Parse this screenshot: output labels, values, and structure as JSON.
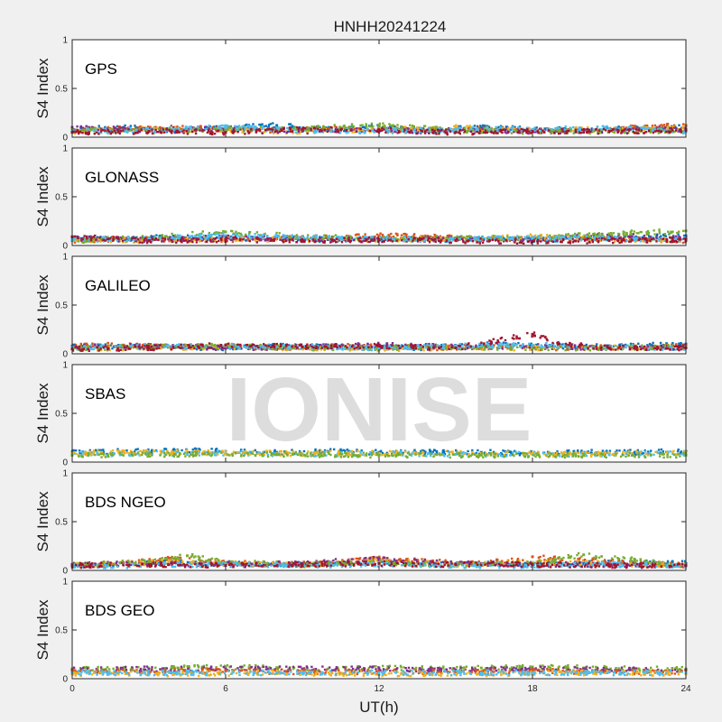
{
  "figure": {
    "title": "HNHH20241224",
    "watermark": "IONISE"
  },
  "chart_data": {
    "type": "scatter",
    "xlabel": "UT(h)",
    "xlim": [
      0,
      24
    ],
    "xticks": [
      0,
      6,
      12,
      18,
      24
    ],
    "ylabel": "S4 Index",
    "ylim": [
      0,
      1
    ],
    "yticks": [
      0,
      0.5,
      1
    ],
    "ytick_labels": [
      "0",
      "0.5",
      "1"
    ],
    "grid": false,
    "colors": [
      "#0072bd",
      "#d95319",
      "#edb120",
      "#7e2f8e",
      "#77ac30",
      "#4dbeee",
      "#a2142f"
    ],
    "panels": [
      {
        "label": "GPS",
        "series": [
          {
            "color": "#0072bd",
            "x": [
              0,
              2,
              4,
              6,
              8,
              10,
              12,
              14,
              16,
              18,
              20,
              22,
              24
            ],
            "y": [
              0.08,
              0.1,
              0.07,
              0.1,
              0.12,
              0.08,
              0.1,
              0.07,
              0.1,
              0.08,
              0.07,
              0.09,
              0.1
            ]
          },
          {
            "color": "#d95319",
            "x": [
              0,
              2,
              4,
              6,
              8,
              10,
              12,
              14,
              16,
              18,
              20,
              22,
              24
            ],
            "y": [
              0.07,
              0.09,
              0.1,
              0.08,
              0.07,
              0.09,
              0.08,
              0.07,
              0.08,
              0.07,
              0.06,
              0.1,
              0.12
            ]
          },
          {
            "color": "#edb120",
            "x": [
              0,
              3,
              6,
              9,
              12,
              15,
              18,
              21,
              24
            ],
            "y": [
              0.06,
              0.08,
              0.07,
              0.06,
              0.08,
              0.1,
              0.07,
              0.08,
              0.09
            ]
          },
          {
            "color": "#7e2f8e",
            "x": [
              0,
              3,
              6,
              9,
              12,
              15,
              18,
              21,
              24
            ],
            "y": [
              0.1,
              0.07,
              0.09,
              0.06,
              0.07,
              0.06,
              0.06,
              0.07,
              0.08
            ]
          },
          {
            "color": "#77ac30",
            "x": [
              0,
              3,
              6,
              9,
              12,
              15,
              18,
              21,
              24
            ],
            "y": [
              0.08,
              0.06,
              0.08,
              0.09,
              0.12,
              0.07,
              0.06,
              0.06,
              0.07
            ]
          },
          {
            "color": "#4dbeee",
            "x": [
              0,
              3,
              6,
              9,
              12,
              15,
              18,
              21,
              24
            ],
            "y": [
              0.06,
              0.07,
              0.1,
              0.07,
              0.06,
              0.08,
              0.08,
              0.09,
              0.06
            ]
          },
          {
            "color": "#a2142f",
            "x": [
              0,
              3,
              6,
              9,
              12,
              15,
              18,
              21,
              24
            ],
            "y": [
              0.05,
              0.06,
              0.05,
              0.08,
              0.07,
              0.05,
              0.06,
              0.06,
              0.07
            ]
          }
        ]
      },
      {
        "label": "GLONASS",
        "series": [
          {
            "color": "#0072bd",
            "x": [
              0,
              2,
              4,
              6,
              8,
              10,
              12,
              14,
              16,
              18,
              20,
              22,
              24
            ],
            "y": [
              0.08,
              0.06,
              0.09,
              0.07,
              0.08,
              0.06,
              0.07,
              0.06,
              0.07,
              0.06,
              0.07,
              0.08,
              0.1
            ]
          },
          {
            "color": "#d95319",
            "x": [
              0,
              2,
              4,
              6,
              8,
              10,
              12,
              14,
              16,
              18,
              20,
              22,
              24
            ],
            "y": [
              0.05,
              0.07,
              0.06,
              0.06,
              0.07,
              0.08,
              0.1,
              0.09,
              0.06,
              0.07,
              0.08,
              0.06,
              0.05
            ]
          },
          {
            "color": "#edb120",
            "x": [
              0,
              3,
              6,
              9,
              12,
              15,
              18,
              21,
              24
            ],
            "y": [
              0.06,
              0.05,
              0.07,
              0.06,
              0.06,
              0.07,
              0.09,
              0.06,
              0.06
            ]
          },
          {
            "color": "#7e2f8e",
            "x": [
              0,
              3,
              6,
              9,
              12,
              15,
              18,
              21,
              24
            ],
            "y": [
              0.07,
              0.06,
              0.08,
              0.07,
              0.06,
              0.07,
              0.06,
              0.1,
              0.08
            ]
          },
          {
            "color": "#77ac30",
            "x": [
              0,
              3,
              6,
              9,
              12,
              15,
              18,
              21,
              24
            ],
            "y": [
              0.05,
              0.08,
              0.14,
              0.09,
              0.07,
              0.08,
              0.07,
              0.12,
              0.15
            ]
          },
          {
            "color": "#4dbeee",
            "x": [
              0,
              3,
              6,
              9,
              12,
              15,
              18,
              21,
              24
            ],
            "y": [
              0.06,
              0.07,
              0.1,
              0.08,
              0.07,
              0.06,
              0.08,
              0.07,
              0.06
            ]
          },
          {
            "color": "#a2142f",
            "x": [
              0,
              3,
              6,
              9,
              12,
              15,
              18,
              21,
              24
            ],
            "y": [
              0.09,
              0.05,
              0.06,
              0.05,
              0.06,
              0.05,
              0.04,
              0.05,
              0.06
            ]
          }
        ]
      },
      {
        "label": "GALILEO",
        "series": [
          {
            "color": "#0072bd",
            "x": [
              0,
              2,
              4,
              6,
              8,
              10,
              12,
              14,
              16,
              18,
              20,
              22,
              24
            ],
            "y": [
              0.07,
              0.08,
              0.07,
              0.06,
              0.08,
              0.07,
              0.07,
              0.06,
              0.1,
              0.08,
              0.07,
              0.08,
              0.1
            ]
          },
          {
            "color": "#d95319",
            "x": [
              0,
              2,
              4,
              6,
              8,
              10,
              12,
              14,
              16,
              18,
              20,
              22,
              24
            ],
            "y": [
              0.08,
              0.09,
              0.07,
              0.08,
              0.06,
              0.08,
              0.07,
              0.06,
              0.07,
              0.06,
              0.06,
              0.07,
              0.08
            ]
          },
          {
            "color": "#edb120",
            "x": [
              0,
              3,
              6,
              9,
              12,
              15,
              18,
              21,
              24
            ],
            "y": [
              0.05,
              0.06,
              0.07,
              0.06,
              0.05,
              0.06,
              0.06,
              0.07,
              0.06
            ]
          },
          {
            "color": "#7e2f8e",
            "x": [
              0,
              3,
              6,
              9,
              12,
              15,
              18,
              21,
              24
            ],
            "y": [
              0.07,
              0.08,
              0.06,
              0.07,
              0.09,
              0.07,
              0.08,
              0.06,
              0.07
            ]
          },
          {
            "color": "#77ac30",
            "x": [
              0,
              3,
              6,
              9,
              12,
              15,
              18,
              21,
              24
            ],
            "y": [
              0.06,
              0.07,
              0.08,
              0.06,
              0.06,
              0.07,
              0.06,
              0.06,
              0.07
            ]
          },
          {
            "color": "#4dbeee",
            "x": [
              0,
              3,
              6,
              9,
              12,
              15,
              18,
              21,
              24
            ],
            "y": [
              0.06,
              0.07,
              0.08,
              0.07,
              0.06,
              0.08,
              0.09,
              0.07,
              0.06
            ]
          },
          {
            "color": "#a2142f",
            "x": [
              0,
              3,
              6,
              9,
              12,
              15,
              18,
              19,
              21,
              24
            ],
            "y": [
              0.05,
              0.06,
              0.09,
              0.07,
              0.08,
              0.06,
              0.2,
              0.1,
              0.06,
              0.06
            ]
          }
        ]
      },
      {
        "label": "SBAS",
        "series": [
          {
            "color": "#0072bd",
            "x": [
              0,
              2,
              4,
              6,
              8,
              10,
              12,
              14,
              16,
              18,
              20,
              22,
              24
            ],
            "y": [
              0.1,
              0.11,
              0.12,
              0.11,
              0.1,
              0.11,
              0.1,
              0.11,
              0.1,
              0.09,
              0.1,
              0.1,
              0.11
            ]
          },
          {
            "color": "#4dbeee",
            "x": [
              0,
              3,
              6,
              9,
              12,
              15,
              18,
              21,
              24
            ],
            "y": [
              0.08,
              0.09,
              0.09,
              0.08,
              0.09,
              0.08,
              0.08,
              0.08,
              0.09
            ]
          },
          {
            "color": "#edb120",
            "x": [
              0,
              4,
              8,
              12,
              16,
              20,
              24
            ],
            "y": [
              0.09,
              0.1,
              0.09,
              0.09,
              0.09,
              0.08,
              0.09
            ]
          },
          {
            "color": "#77ac30",
            "x": [
              0,
              4,
              8,
              12,
              16,
              20,
              24
            ],
            "y": [
              0.07,
              0.08,
              0.08,
              0.07,
              0.07,
              0.07,
              0.07
            ]
          }
        ]
      },
      {
        "label": "BDS NGEO",
        "series": [
          {
            "color": "#0072bd",
            "x": [
              0,
              2,
              4,
              6,
              8,
              10,
              12,
              14,
              16,
              18,
              20,
              22,
              24
            ],
            "y": [
              0.05,
              0.06,
              0.08,
              0.07,
              0.06,
              0.07,
              0.08,
              0.06,
              0.07,
              0.06,
              0.07,
              0.08,
              0.07
            ]
          },
          {
            "color": "#d95319",
            "x": [
              0,
              2,
              4,
              6,
              8,
              10,
              12,
              14,
              16,
              18,
              20,
              22,
              24
            ],
            "y": [
              0.06,
              0.07,
              0.12,
              0.08,
              0.06,
              0.07,
              0.12,
              0.09,
              0.07,
              0.14,
              0.1,
              0.08,
              0.05
            ]
          },
          {
            "color": "#edb120",
            "x": [
              0,
              3,
              6,
              9,
              12,
              15,
              18,
              21,
              24
            ],
            "y": [
              0.05,
              0.08,
              0.07,
              0.05,
              0.1,
              0.06,
              0.08,
              0.07,
              0.05
            ]
          },
          {
            "color": "#7e2f8e",
            "x": [
              0,
              3,
              6,
              9,
              12,
              15,
              18,
              21,
              24
            ],
            "y": [
              0.06,
              0.07,
              0.06,
              0.07,
              0.12,
              0.07,
              0.06,
              0.06,
              0.05
            ]
          },
          {
            "color": "#77ac30",
            "x": [
              0,
              3,
              4.5,
              6,
              9,
              12,
              15,
              18,
              20,
              24
            ],
            "y": [
              0.05,
              0.09,
              0.15,
              0.08,
              0.06,
              0.08,
              0.06,
              0.07,
              0.16,
              0.05
            ]
          },
          {
            "color": "#4dbeee",
            "x": [
              0,
              3,
              6,
              9,
              12,
              15,
              18,
              21,
              24
            ],
            "y": [
              0.04,
              0.05,
              0.06,
              0.05,
              0.06,
              0.05,
              0.05,
              0.06,
              0.05
            ]
          },
          {
            "color": "#a2142f",
            "x": [
              0,
              3,
              6,
              9,
              12,
              15,
              18,
              21,
              24
            ],
            "y": [
              0.05,
              0.06,
              0.05,
              0.06,
              0.07,
              0.06,
              0.06,
              0.05,
              0.05
            ]
          }
        ]
      },
      {
        "label": "BDS GEO",
        "series": [
          {
            "color": "#77ac30",
            "x": [
              0,
              2,
              4,
              6,
              8,
              10,
              12,
              14,
              16,
              18,
              20,
              22,
              24
            ],
            "y": [
              0.1,
              0.1,
              0.11,
              0.12,
              0.11,
              0.1,
              0.11,
              0.1,
              0.11,
              0.12,
              0.11,
              0.1,
              0.1
            ]
          },
          {
            "color": "#7e2f8e",
            "x": [
              0,
              3,
              6,
              9,
              12,
              15,
              18,
              21,
              24
            ],
            "y": [
              0.09,
              0.1,
              0.1,
              0.1,
              0.1,
              0.09,
              0.1,
              0.09,
              0.09
            ]
          },
          {
            "color": "#d95319",
            "x": [
              0,
              3,
              6,
              9,
              12,
              15,
              18,
              21,
              24
            ],
            "y": [
              0.07,
              0.07,
              0.08,
              0.07,
              0.07,
              0.07,
              0.08,
              0.07,
              0.07
            ]
          },
          {
            "color": "#edb120",
            "x": [
              0,
              4,
              8,
              12,
              16,
              20,
              24
            ],
            "y": [
              0.05,
              0.05,
              0.06,
              0.05,
              0.05,
              0.06,
              0.05
            ]
          },
          {
            "color": "#4dbeee",
            "x": [
              0,
              4,
              8,
              12,
              16,
              20,
              24
            ],
            "y": [
              0.06,
              0.06,
              0.06,
              0.06,
              0.06,
              0.06,
              0.06
            ]
          }
        ]
      }
    ]
  }
}
